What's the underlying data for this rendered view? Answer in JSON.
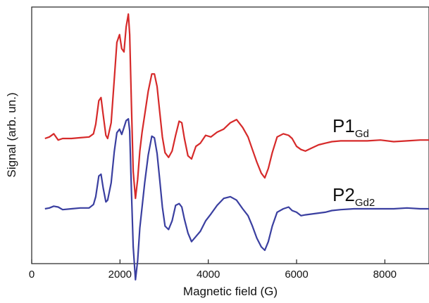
{
  "chart_data": {
    "type": "line",
    "title": "",
    "xlabel": "Magnetic field (G)",
    "ylabel": "Signal (arb. un.)",
    "xlim": [
      0,
      9000
    ],
    "y_ticks_shown": false,
    "x_ticks": [
      0,
      2000,
      4000,
      6000,
      8000
    ],
    "x_tick_labels": [
      "0",
      "2000",
      "4000",
      "6000",
      "8000"
    ],
    "grid": false,
    "legend": "none (series labels placed beside curves)",
    "series": [
      {
        "name_main": "P1",
        "name_sub": "Gd",
        "color": "#d62a2a",
        "offset": 1.0,
        "points": [
          [
            300,
            0
          ],
          [
            400,
            0.02
          ],
          [
            500,
            0.06
          ],
          [
            600,
            -0.02
          ],
          [
            700,
            0
          ],
          [
            900,
            0
          ],
          [
            1100,
            0.01
          ],
          [
            1300,
            0.02
          ],
          [
            1400,
            0.06
          ],
          [
            1450,
            0.18
          ],
          [
            1520,
            0.48
          ],
          [
            1570,
            0.52
          ],
          [
            1620,
            0.3
          ],
          [
            1680,
            0.04
          ],
          [
            1720,
            0
          ],
          [
            1800,
            0.2
          ],
          [
            1870,
            0.75
          ],
          [
            1930,
            1.22
          ],
          [
            1990,
            1.32
          ],
          [
            2040,
            1.14
          ],
          [
            2090,
            1.1
          ],
          [
            2140,
            1.42
          ],
          [
            2190,
            1.58
          ],
          [
            2220,
            1.32
          ],
          [
            2260,
            0.42
          ],
          [
            2300,
            -0.42
          ],
          [
            2350,
            -0.76
          ],
          [
            2400,
            -0.52
          ],
          [
            2450,
            -0.16
          ],
          [
            2500,
            0.08
          ],
          [
            2560,
            0.3
          ],
          [
            2640,
            0.6
          ],
          [
            2720,
            0.82
          ],
          [
            2780,
            0.82
          ],
          [
            2840,
            0.66
          ],
          [
            2900,
            0.34
          ],
          [
            2960,
            0.02
          ],
          [
            3020,
            -0.18
          ],
          [
            3100,
            -0.24
          ],
          [
            3180,
            -0.16
          ],
          [
            3260,
            0.04
          ],
          [
            3340,
            0.22
          ],
          [
            3400,
            0.2
          ],
          [
            3460,
            0
          ],
          [
            3540,
            -0.22
          ],
          [
            3620,
            -0.26
          ],
          [
            3720,
            -0.1
          ],
          [
            3820,
            -0.06
          ],
          [
            3940,
            0.04
          ],
          [
            4060,
            0.02
          ],
          [
            4200,
            0.08
          ],
          [
            4350,
            0.12
          ],
          [
            4500,
            0.2
          ],
          [
            4640,
            0.24
          ],
          [
            4780,
            0.14
          ],
          [
            4900,
            0.02
          ],
          [
            5000,
            -0.14
          ],
          [
            5100,
            -0.3
          ],
          [
            5200,
            -0.44
          ],
          [
            5280,
            -0.5
          ],
          [
            5360,
            -0.38
          ],
          [
            5450,
            -0.18
          ],
          [
            5560,
            0.02
          ],
          [
            5700,
            0.06
          ],
          [
            5820,
            0.04
          ],
          [
            5900,
            0
          ],
          [
            6000,
            -0.1
          ],
          [
            6100,
            -0.14
          ],
          [
            6200,
            -0.16
          ],
          [
            6350,
            -0.12
          ],
          [
            6500,
            -0.08
          ],
          [
            6650,
            -0.06
          ],
          [
            6800,
            -0.04
          ],
          [
            7000,
            -0.03
          ],
          [
            7300,
            -0.03
          ],
          [
            7600,
            -0.03
          ],
          [
            7900,
            -0.02
          ],
          [
            8200,
            -0.04
          ],
          [
            8500,
            -0.03
          ],
          [
            8800,
            -0.02
          ],
          [
            9000,
            -0.02
          ]
        ]
      },
      {
        "name_main": "P2",
        "name_sub": "Gd2",
        "color": "#3a3fa0",
        "offset": 0.0,
        "points": [
          [
            300,
            0
          ],
          [
            400,
            0.01
          ],
          [
            500,
            0.03
          ],
          [
            600,
            0.02
          ],
          [
            700,
            -0.01
          ],
          [
            900,
            0
          ],
          [
            1100,
            0.01
          ],
          [
            1300,
            0.01
          ],
          [
            1400,
            0.05
          ],
          [
            1450,
            0.14
          ],
          [
            1520,
            0.38
          ],
          [
            1570,
            0.4
          ],
          [
            1620,
            0.24
          ],
          [
            1680,
            0.08
          ],
          [
            1720,
            0.1
          ],
          [
            1800,
            0.3
          ],
          [
            1870,
            0.66
          ],
          [
            1930,
            0.88
          ],
          [
            1990,
            0.92
          ],
          [
            2040,
            0.86
          ],
          [
            2090,
            0.94
          ],
          [
            2140,
            1.02
          ],
          [
            2190,
            1.04
          ],
          [
            2220,
            0.9
          ],
          [
            2260,
            0.2
          ],
          [
            2300,
            -0.44
          ],
          [
            2350,
            -0.82
          ],
          [
            2400,
            -0.6
          ],
          [
            2450,
            -0.22
          ],
          [
            2500,
            0.02
          ],
          [
            2560,
            0.3
          ],
          [
            2640,
            0.62
          ],
          [
            2720,
            0.84
          ],
          [
            2780,
            0.82
          ],
          [
            2840,
            0.64
          ],
          [
            2900,
            0.34
          ],
          [
            2960,
            0.02
          ],
          [
            3020,
            -0.2
          ],
          [
            3100,
            -0.24
          ],
          [
            3180,
            -0.14
          ],
          [
            3260,
            0.04
          ],
          [
            3340,
            0.06
          ],
          [
            3400,
            0.02
          ],
          [
            3460,
            -0.12
          ],
          [
            3540,
            -0.28
          ],
          [
            3620,
            -0.38
          ],
          [
            3720,
            -0.32
          ],
          [
            3820,
            -0.26
          ],
          [
            3940,
            -0.14
          ],
          [
            4060,
            -0.06
          ],
          [
            4200,
            0.04
          ],
          [
            4350,
            0.12
          ],
          [
            4500,
            0.14
          ],
          [
            4640,
            0.1
          ],
          [
            4780,
            0.0
          ],
          [
            4900,
            -0.08
          ],
          [
            5000,
            -0.2
          ],
          [
            5100,
            -0.34
          ],
          [
            5200,
            -0.44
          ],
          [
            5280,
            -0.48
          ],
          [
            5360,
            -0.38
          ],
          [
            5450,
            -0.2
          ],
          [
            5560,
            -0.04
          ],
          [
            5700,
            0.0
          ],
          [
            5820,
            0.02
          ],
          [
            5900,
            -0.02
          ],
          [
            6000,
            -0.04
          ],
          [
            6100,
            -0.08
          ],
          [
            6200,
            -0.07
          ],
          [
            6350,
            -0.06
          ],
          [
            6500,
            -0.05
          ],
          [
            6650,
            -0.04
          ],
          [
            6800,
            -0.02
          ],
          [
            7000,
            -0.01
          ],
          [
            7300,
            0.0
          ],
          [
            7600,
            0.0
          ],
          [
            7900,
            0.0
          ],
          [
            8200,
            0.0
          ],
          [
            8500,
            0.01
          ],
          [
            8800,
            0.0
          ],
          [
            9000,
            0.0
          ]
        ]
      }
    ]
  }
}
